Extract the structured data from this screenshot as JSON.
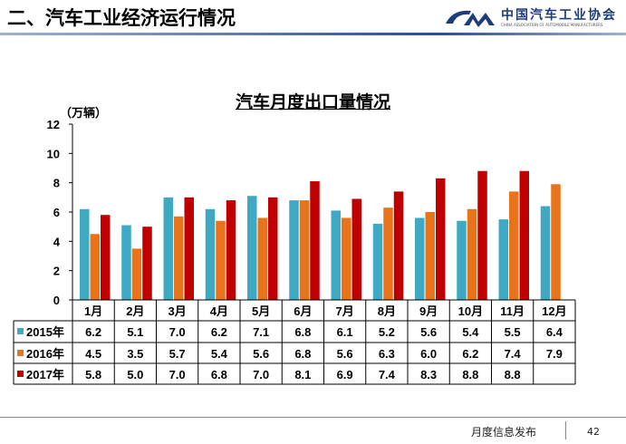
{
  "slide": {
    "title": "二、汽车工业经济运行情况",
    "footer": "月度信息发布",
    "page": "42"
  },
  "logo": {
    "cn": "中国汽车工业协会",
    "en": "CHINA ASSOCIATION OF AUTOMOBILE MANUFACTURERS"
  },
  "chart_data": {
    "type": "bar",
    "title": "汽车月度出口量情况",
    "ylabel": "（万辆）",
    "ylim": [
      0,
      12
    ],
    "yticks": [
      0,
      2,
      4,
      6,
      8,
      10,
      12
    ],
    "grid": false,
    "legend": "data-table",
    "categories": [
      "1月",
      "2月",
      "3月",
      "4月",
      "5月",
      "6月",
      "7月",
      "8月",
      "9月",
      "10月",
      "11月",
      "12月"
    ],
    "series": [
      {
        "name": "2015年",
        "color": "#3fa9c3",
        "values": [
          6.2,
          5.1,
          7.0,
          6.2,
          7.1,
          6.8,
          6.1,
          5.2,
          5.6,
          5.4,
          5.5,
          6.4
        ]
      },
      {
        "name": "2016年",
        "color": "#e8731a",
        "values": [
          4.5,
          3.5,
          5.7,
          5.4,
          5.6,
          6.8,
          5.6,
          6.3,
          6.0,
          6.2,
          7.4,
          7.9
        ]
      },
      {
        "name": "2017年",
        "color": "#c00000",
        "values": [
          5.8,
          5.0,
          7.0,
          6.8,
          7.0,
          8.1,
          6.9,
          7.4,
          8.3,
          8.8,
          8.8,
          null
        ]
      }
    ]
  }
}
